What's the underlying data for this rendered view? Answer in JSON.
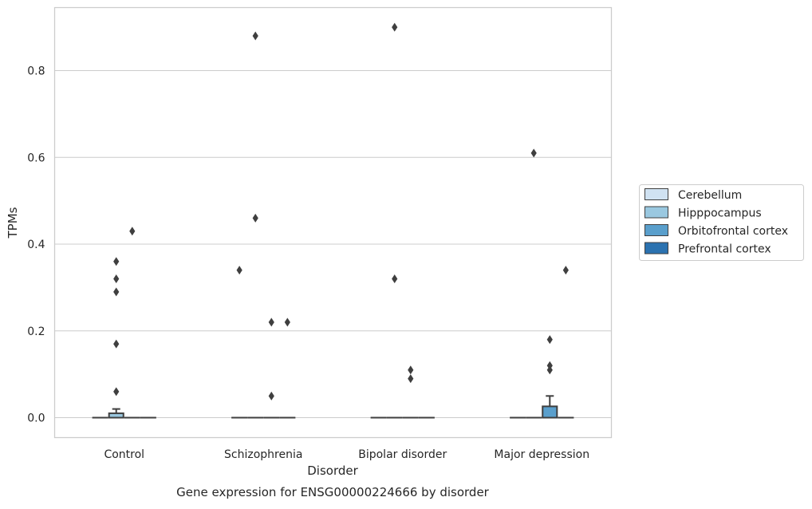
{
  "chart_data": {
    "type": "box",
    "title": "",
    "caption": "Gene expression for ENSG00000224666 by disorder",
    "xlabel": "Disorder",
    "ylabel": "TPMs",
    "ylim": [
      -0.044,
      0.95
    ],
    "yticks": [
      0.0,
      0.2,
      0.4,
      0.6,
      0.8
    ],
    "ytick_labels": [
      "0.0",
      "0.2",
      "0.4",
      "0.6",
      "0.8"
    ],
    "grid": "horizontal",
    "legend_position": "right",
    "categories": [
      "Control",
      "Schizophrenia",
      "Bipolar disorder",
      "Major depression"
    ],
    "series": [
      {
        "name": "Cerebellum",
        "color": "#d0e2f2",
        "boxes": [
          {
            "q1": 0,
            "median": 0,
            "q3": 0,
            "whisker_low": 0,
            "whisker_high": 0,
            "outliers": []
          },
          {
            "q1": 0,
            "median": 0,
            "q3": 0,
            "whisker_low": 0,
            "whisker_high": 0,
            "outliers": [
              0.34
            ]
          },
          {
            "q1": 0,
            "median": 0,
            "q3": 0,
            "whisker_low": 0,
            "whisker_high": 0,
            "outliers": []
          },
          {
            "q1": 0,
            "median": 0,
            "q3": 0,
            "whisker_low": 0,
            "whisker_high": 0,
            "outliers": []
          }
        ]
      },
      {
        "name": "Hipppocampus",
        "color": "#9ac8e0",
        "boxes": [
          {
            "q1": 0,
            "median": 0,
            "q3": 0.01,
            "whisker_low": 0,
            "whisker_high": 0.02,
            "outliers": [
              0.06,
              0.17,
              0.29,
              0.32,
              0.36
            ]
          },
          {
            "q1": 0,
            "median": 0,
            "q3": 0,
            "whisker_low": 0,
            "whisker_high": 0,
            "outliers": [
              0.46,
              0.88
            ]
          },
          {
            "q1": 0,
            "median": 0,
            "q3": 0,
            "whisker_low": 0,
            "whisker_high": 0,
            "outliers": [
              0.32,
              0.9
            ]
          },
          {
            "q1": 0,
            "median": 0,
            "q3": 0,
            "whisker_low": 0,
            "whisker_high": 0,
            "outliers": [
              0.61
            ]
          }
        ]
      },
      {
        "name": "Orbitofrontal cortex",
        "color": "#5a9fcc",
        "boxes": [
          {
            "q1": 0,
            "median": 0,
            "q3": 0,
            "whisker_low": 0,
            "whisker_high": 0,
            "outliers": [
              0.43
            ]
          },
          {
            "q1": 0,
            "median": 0,
            "q3": 0,
            "whisker_low": 0,
            "whisker_high": 0,
            "outliers": [
              0.05,
              0.22
            ]
          },
          {
            "q1": 0,
            "median": 0,
            "q3": 0,
            "whisker_low": 0,
            "whisker_high": 0,
            "outliers": [
              0.09,
              0.11
            ]
          },
          {
            "q1": 0,
            "median": 0,
            "q3": 0.026,
            "whisker_low": 0,
            "whisker_high": 0.05,
            "outliers": [
              0.11,
              0.12,
              0.18
            ]
          }
        ]
      },
      {
        "name": "Prefrontal cortex",
        "color": "#2b72b0",
        "boxes": [
          {
            "q1": 0,
            "median": 0,
            "q3": 0,
            "whisker_low": 0,
            "whisker_high": 0,
            "outliers": []
          },
          {
            "q1": 0,
            "median": 0,
            "q3": 0,
            "whisker_low": 0,
            "whisker_high": 0,
            "outliers": [
              0.22
            ]
          },
          {
            "q1": 0,
            "median": 0,
            "q3": 0,
            "whisker_low": 0,
            "whisker_high": 0,
            "outliers": []
          },
          {
            "q1": 0,
            "median": 0,
            "q3": 0,
            "whisker_low": 0,
            "whisker_high": 0,
            "outliers": [
              0.34
            ]
          }
        ]
      }
    ]
  }
}
